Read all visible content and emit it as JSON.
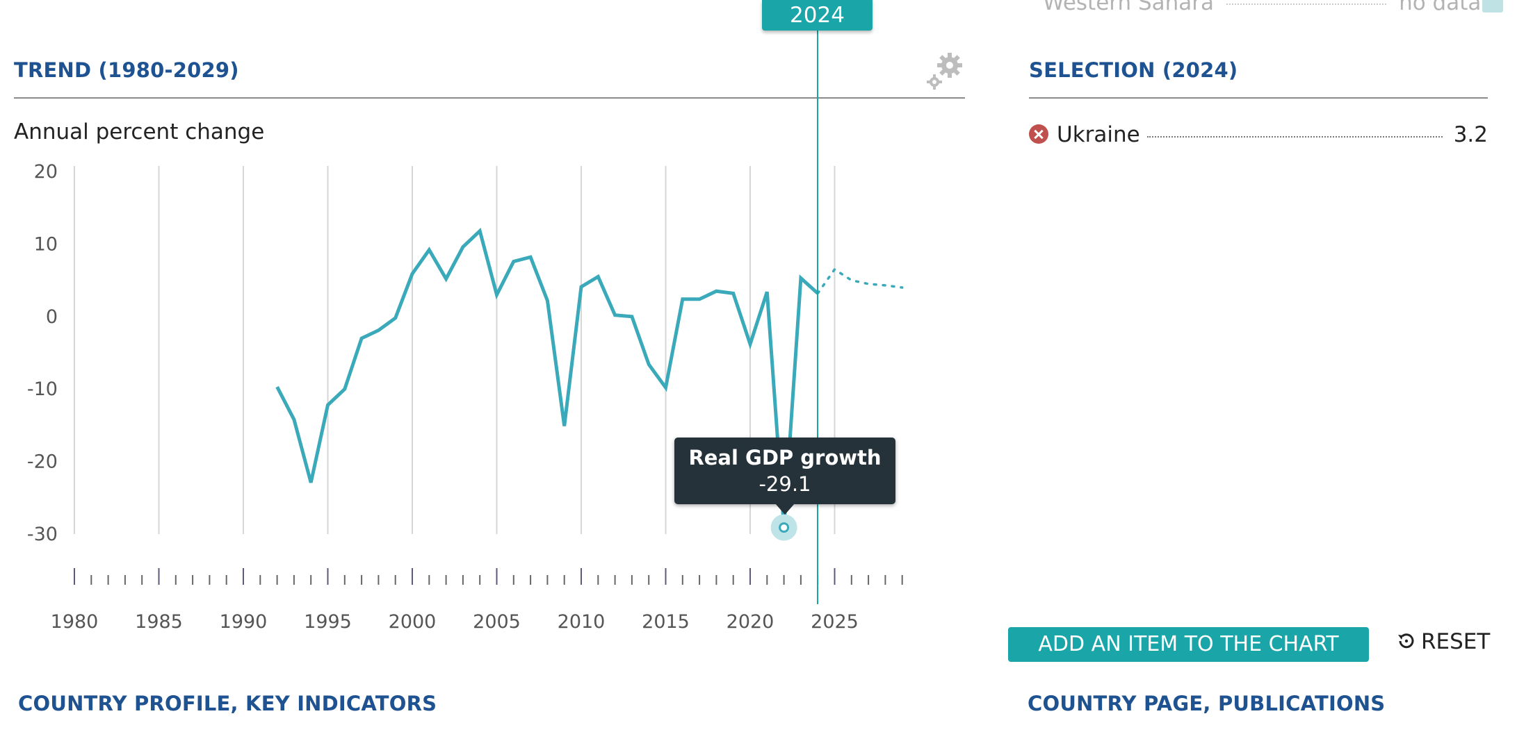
{
  "year_flag": "2024",
  "ghost_row": {
    "country": "Western Sahara",
    "value": "no data"
  },
  "trend": {
    "title": "TREND (1980-2029)",
    "subtitle": "Annual percent change"
  },
  "selection": {
    "title": "SELECTION (2024)",
    "items": [
      {
        "name": "Ukraine",
        "value": "3.2",
        "color": "#1aa5a8"
      }
    ]
  },
  "tooltip": {
    "title": "Real GDP growth",
    "value": "-29.1"
  },
  "buttons": {
    "add": "ADD AN ITEM TO THE CHART",
    "reset": "RESET"
  },
  "footer": {
    "left": "COUNTRY PROFILE, KEY INDICATORS",
    "right": "COUNTRY PAGE, PUBLICATIONS"
  },
  "colors": {
    "accent": "#1aa5a8",
    "title": "#1f5291",
    "remove": "#c0504d",
    "tooltip_bg": "#25323a"
  },
  "chart_data": {
    "type": "line",
    "title": "",
    "ylabel": "Annual percent change",
    "ylim": [
      -30,
      20
    ],
    "y_ticks": [
      "20",
      "10",
      "0",
      "-10",
      "-20",
      "-30"
    ],
    "x_ticks": [
      "1980",
      "1985",
      "1990",
      "1995",
      "2000",
      "2005",
      "2010",
      "2015",
      "2020",
      "2025"
    ],
    "xlim": [
      1980,
      2029
    ],
    "selected_year": 2024,
    "highlighted_point": {
      "x": 2022,
      "y": -29.1
    },
    "series": [
      {
        "color": "#3aa9b9",
        "actual": [
          [
            1992,
            -9.7
          ],
          [
            1993,
            -14.2
          ],
          [
            1994,
            -22.9
          ],
          [
            1995,
            -12.2
          ],
          [
            1996,
            -10.0
          ],
          [
            1997,
            -3.0
          ],
          [
            1998,
            -1.9
          ],
          [
            1999,
            -0.2
          ],
          [
            2000,
            5.9
          ],
          [
            2001,
            9.2
          ],
          [
            2002,
            5.2
          ],
          [
            2003,
            9.6
          ],
          [
            2004,
            11.8
          ],
          [
            2005,
            3.0
          ],
          [
            2006,
            7.6
          ],
          [
            2007,
            8.2
          ],
          [
            2008,
            2.2
          ],
          [
            2009,
            -15.1
          ],
          [
            2010,
            4.1
          ],
          [
            2011,
            5.5
          ],
          [
            2012,
            0.2
          ],
          [
            2013,
            0.0
          ],
          [
            2014,
            -6.6
          ],
          [
            2015,
            -9.8
          ],
          [
            2016,
            2.4
          ],
          [
            2017,
            2.4
          ],
          [
            2018,
            3.5
          ],
          [
            2019,
            3.2
          ],
          [
            2020,
            -3.8
          ],
          [
            2021,
            3.4
          ],
          [
            2022,
            -29.1
          ],
          [
            2023,
            5.3
          ],
          [
            2024,
            3.2
          ]
        ],
        "projection": [
          [
            2024,
            3.2
          ],
          [
            2025,
            6.5
          ],
          [
            2026,
            5.0
          ],
          [
            2027,
            4.5
          ],
          [
            2028,
            4.3
          ],
          [
            2029,
            4.0
          ]
        ]
      }
    ]
  }
}
